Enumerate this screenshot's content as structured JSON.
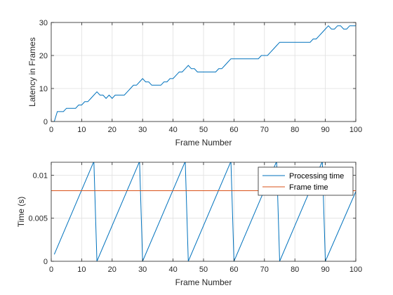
{
  "chart_data": [
    {
      "type": "line",
      "xlabel": "Frame Number",
      "ylabel": "Latency in Frames",
      "xlim": [
        0,
        100
      ],
      "ylim": [
        0,
        30
      ],
      "xticks": [
        "0",
        "10",
        "20",
        "30",
        "40",
        "50",
        "60",
        "70",
        "80",
        "90",
        "100"
      ],
      "yticks": [
        "0",
        "10",
        "20",
        "30"
      ],
      "grid": true,
      "series": [
        {
          "color": "#0072BD",
          "x": [
            1,
            2,
            3,
            4,
            5,
            6,
            7,
            8,
            9,
            10,
            11,
            12,
            13,
            14,
            15,
            16,
            17,
            18,
            19,
            20,
            21,
            22,
            23,
            24,
            25,
            26,
            27,
            28,
            29,
            30,
            31,
            32,
            33,
            34,
            35,
            36,
            37,
            38,
            39,
            40,
            41,
            42,
            43,
            44,
            45,
            46,
            47,
            48,
            49,
            50,
            51,
            52,
            53,
            54,
            55,
            56,
            57,
            58,
            59,
            60,
            61,
            62,
            63,
            64,
            65,
            66,
            67,
            68,
            69,
            70,
            71,
            72,
            73,
            74,
            75,
            76,
            77,
            78,
            79,
            80,
            81,
            82,
            83,
            84,
            85,
            86,
            87,
            88,
            89,
            90,
            91,
            92,
            93,
            94,
            95,
            96,
            97,
            98,
            99,
            100
          ],
          "y": [
            0,
            3,
            3,
            3,
            4,
            4,
            4,
            4,
            5,
            5,
            6,
            6,
            7,
            8,
            9,
            8,
            8,
            7,
            8,
            7,
            8,
            8,
            8,
            8,
            9,
            10,
            11,
            11,
            12,
            13,
            12,
            12,
            11,
            11,
            11,
            11,
            12,
            12,
            13,
            13,
            14,
            15,
            15,
            16,
            17,
            16,
            16,
            15,
            15,
            15,
            15,
            15,
            15,
            15,
            16,
            16,
            17,
            18,
            19,
            19,
            19,
            19,
            19,
            19,
            19,
            19,
            19,
            19,
            20,
            20,
            20,
            21,
            22,
            23,
            24,
            24,
            24,
            24,
            24,
            24,
            24,
            24,
            24,
            24,
            24,
            25,
            25,
            26,
            27,
            28,
            29,
            28,
            28,
            29,
            29,
            28,
            28,
            29,
            29,
            29
          ]
        }
      ]
    },
    {
      "type": "line",
      "xlabel": "Frame Number",
      "ylabel": "Time (s)",
      "xlim": [
        0,
        100
      ],
      "ylim": [
        0,
        0.0115
      ],
      "xticks": [
        "0",
        "10",
        "20",
        "30",
        "40",
        "50",
        "60",
        "70",
        "80",
        "90",
        "100"
      ],
      "yticks": [
        {
          "value": 0,
          "label": "0"
        },
        {
          "value": 0.005,
          "label": "0.005"
        },
        {
          "value": 0.01,
          "label": "0.01"
        }
      ],
      "grid": true,
      "legend_position": "top-right",
      "series": [
        {
          "name": "Processing time",
          "color": "#0072BD",
          "x": [
            1,
            14,
            15,
            29,
            30,
            44,
            45,
            59,
            60,
            74,
            75,
            89,
            90,
            100
          ],
          "y": [
            0.0008,
            0.0116,
            0,
            0.0116,
            0,
            0.0116,
            0,
            0.0116,
            0,
            0.0116,
            0,
            0.0116,
            0,
            0.0081
          ]
        },
        {
          "name": "Frame time",
          "color": "#D95319",
          "x": [
            0,
            100
          ],
          "y": [
            0.0082,
            0.0082
          ]
        }
      ]
    }
  ]
}
